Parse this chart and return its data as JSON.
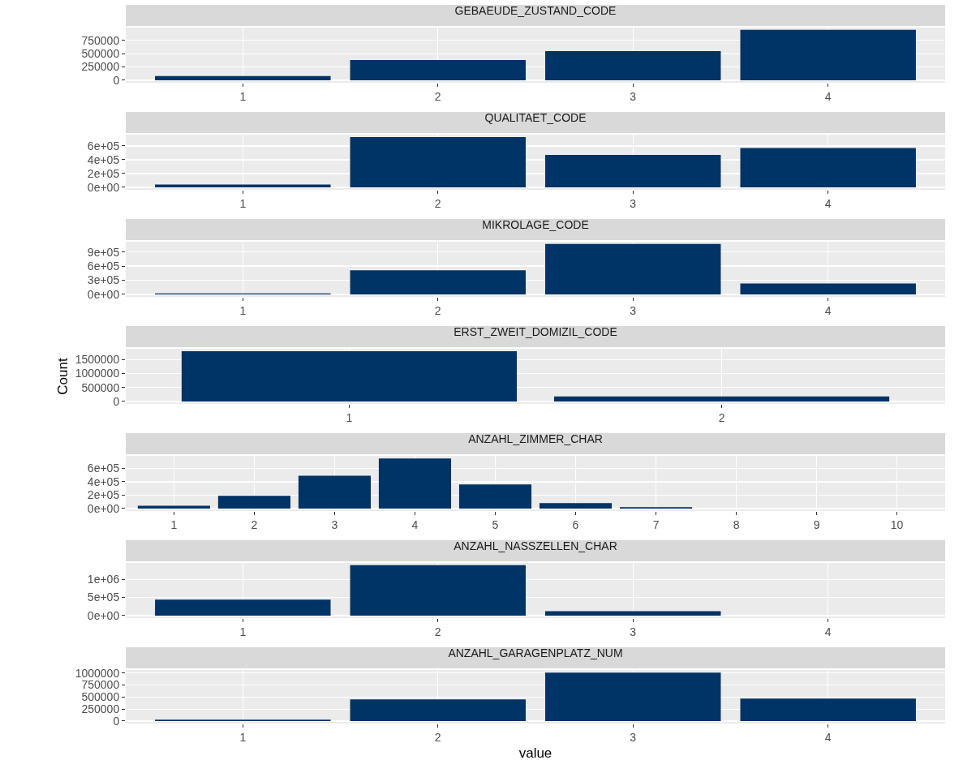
{
  "chart_data": [
    {
      "type": "bar",
      "title": "GEBAEUDE_ZUSTAND_CODE",
      "categories": [
        "1",
        "2",
        "3",
        "4"
      ],
      "values": [
        80000,
        380000,
        550000,
        950000
      ],
      "color": "#003366",
      "ylim": [
        -47000,
        992000
      ],
      "yticks": [
        0,
        250000,
        500000,
        750000
      ],
      "grid": true
    },
    {
      "type": "bar",
      "title": "QUALITAET_CODE",
      "categories": [
        "1",
        "2",
        "3",
        "4"
      ],
      "values": [
        40000,
        730000,
        470000,
        570000
      ],
      "color": "#003366",
      "ylim": [
        -36400,
        764400
      ],
      "yticks": [
        {
          "value": 0,
          "label": "0e+00"
        },
        {
          "value": 200000,
          "label": "2e+05"
        },
        {
          "value": 400000,
          "label": "4e+05"
        },
        {
          "value": 600000,
          "label": "6e+05"
        }
      ],
      "grid": true
    },
    {
      "type": "bar",
      "title": "MIKROLAGE_CODE",
      "categories": [
        "1",
        "2",
        "3",
        "4"
      ],
      "values": [
        20000,
        510000,
        1070000,
        230000
      ],
      "color": "#003366",
      "ylim": [
        -53000,
        1118000
      ],
      "yticks": [
        {
          "value": 0,
          "label": "0e+00"
        },
        {
          "value": 300000,
          "label": "3e+05"
        },
        {
          "value": 600000,
          "label": "6e+05"
        },
        {
          "value": 900000,
          "label": "9e+05"
        }
      ],
      "grid": true
    },
    {
      "type": "bar",
      "title": "ERST_ZWEIT_DOMIZIL_CODE",
      "ylabel": "Count",
      "categories": [
        "1",
        "2"
      ],
      "values": [
        1800000,
        180000
      ],
      "color": "#003366",
      "ylim": [
        -90000,
        1890000
      ],
      "yticks": [
        0,
        500000,
        1000000,
        1500000
      ],
      "grid": true
    },
    {
      "type": "bar",
      "title": "ANZAHL_ZIMMER_CHAR",
      "categories": [
        "1",
        "2",
        "3",
        "4",
        "5",
        "6",
        "7",
        "8",
        "9",
        "10"
      ],
      "values": [
        40000,
        190000,
        490000,
        750000,
        360000,
        80000,
        20000,
        0,
        0,
        0
      ],
      "color": "#003366",
      "ylim": [
        -37500,
        788000
      ],
      "yticks": [
        {
          "value": 0,
          "label": "0e+00"
        },
        {
          "value": 200000,
          "label": "2e+05"
        },
        {
          "value": 400000,
          "label": "4e+05"
        },
        {
          "value": 600000,
          "label": "6e+05"
        }
      ],
      "grid": true
    },
    {
      "type": "bar",
      "title": "ANZAHL_NASSZELLEN_CHAR",
      "categories": [
        "1",
        "2",
        "3",
        "4"
      ],
      "values": [
        440000,
        1390000,
        120000,
        0
      ],
      "color": "#003366",
      "ylim": [
        -69000,
        1454000
      ],
      "yticks": [
        {
          "value": 0,
          "label": "0e+00"
        },
        {
          "value": 500000,
          "label": "5e+05"
        },
        {
          "value": 1000000,
          "label": "1e+06"
        }
      ],
      "grid": true
    },
    {
      "type": "bar",
      "title": "ANZAHL_GARAGENPLATZ_NUM",
      "xlabel": "value",
      "categories": [
        "1",
        "2",
        "3",
        "4"
      ],
      "values": [
        30000,
        450000,
        1010000,
        470000
      ],
      "color": "#003366",
      "ylim": [
        -51000,
        1064000
      ],
      "yticks": [
        0,
        250000,
        500000,
        750000,
        1000000
      ],
      "grid": true
    }
  ]
}
